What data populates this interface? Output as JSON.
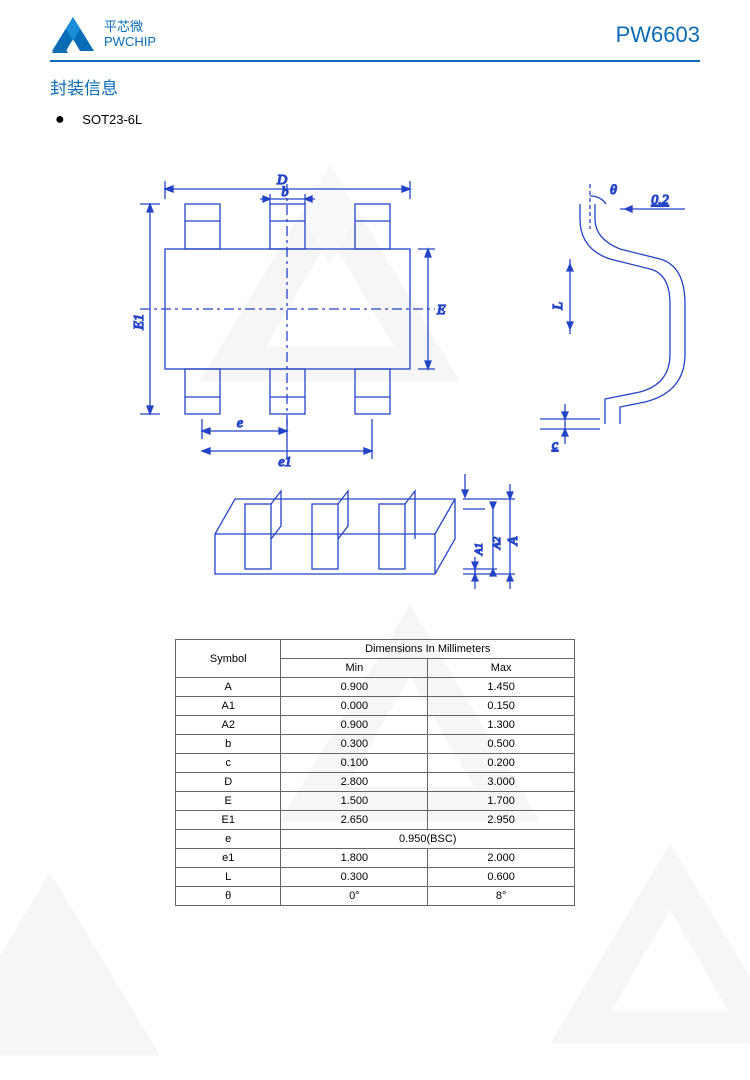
{
  "header": {
    "company_cn": "平芯微",
    "company_en": "PWCHIP",
    "part_number": "PW6603",
    "logo_color": "#0a6cb5"
  },
  "section": {
    "title": "封装信息",
    "package": "SOT23-6L"
  },
  "colors": {
    "brand": "#0a6cb5",
    "diagram_line": "#2444c7",
    "table_border": "#666666",
    "watermark": "#9a9a9a"
  },
  "diagram_labels": {
    "D": "D",
    "b": "b",
    "E": "E",
    "E1": "E1",
    "e": "e",
    "e1": "e1",
    "theta": "θ",
    "notch": "0.2",
    "c": "c",
    "L": "L",
    "A": "A",
    "A1": "A1",
    "A2": "A2"
  },
  "table": {
    "header_symbol": "Symbol",
    "header_dims": "Dimensions In Millimeters",
    "header_min": "Min",
    "header_max": "Max",
    "rows": [
      {
        "sym": "A",
        "min": "0.900",
        "max": "1.450"
      },
      {
        "sym": "A1",
        "min": "0.000",
        "max": "0.150"
      },
      {
        "sym": "A2",
        "min": "0.900",
        "max": "1.300"
      },
      {
        "sym": "b",
        "min": "0.300",
        "max": "0.500"
      },
      {
        "sym": "c",
        "min": "0.100",
        "max": "0.200"
      },
      {
        "sym": "D",
        "min": "2.800",
        "max": "3.000"
      },
      {
        "sym": "E",
        "min": "1.500",
        "max": "1.700"
      },
      {
        "sym": "E1",
        "min": "2.650",
        "max": "2.950"
      },
      {
        "sym": "e",
        "span": "0.950(BSC)"
      },
      {
        "sym": "e1",
        "min": "1.800",
        "max": "2.000"
      },
      {
        "sym": "L",
        "min": "0.300",
        "max": "0.600"
      },
      {
        "sym": "θ",
        "min": "0°",
        "max": "8°"
      }
    ]
  }
}
